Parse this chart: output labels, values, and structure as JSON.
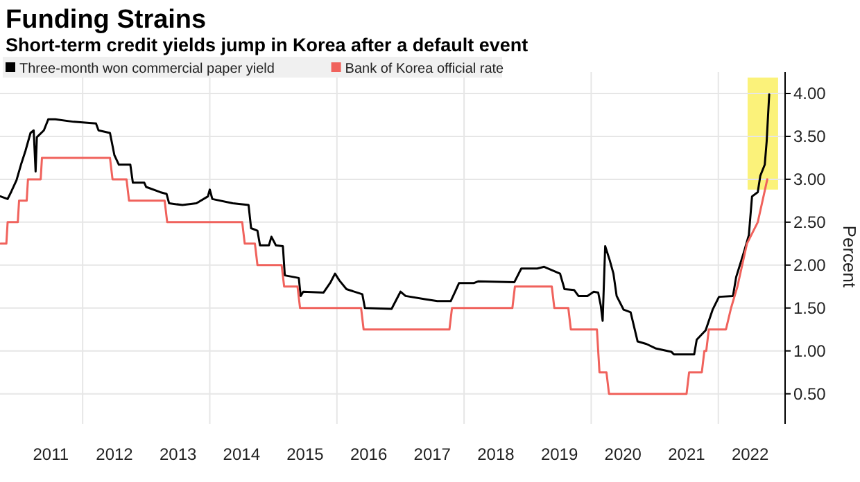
{
  "chart_data": {
    "type": "line",
    "title": "Funding Strains",
    "subtitle": "Short-term credit yields jump in Korea after a default event",
    "ylabel": "Percent",
    "series": [
      {
        "name": "Three-month won commercial paper yield",
        "color": "#000000",
        "x": [
          2010.71,
          2010.82,
          2010.88,
          2010.96,
          2011.03,
          2011.1,
          2011.18,
          2011.23,
          2011.26,
          2011.28,
          2011.39,
          2011.46,
          2011.57,
          2011.86,
          2012.21,
          2012.25,
          2012.43,
          2012.5,
          2012.57,
          2012.75,
          2012.79,
          2012.97,
          2013.0,
          2013.22,
          2013.32,
          2013.36,
          2013.57,
          2013.79,
          2013.97,
          2014.0,
          2014.04,
          2014.36,
          2014.61,
          2014.65,
          2014.75,
          2014.79,
          2014.93,
          2014.97,
          2015.04,
          2015.15,
          2015.18,
          2015.4,
          2015.43,
          2015.47,
          2015.79,
          2015.9,
          2015.97,
          2016.04,
          2016.15,
          2016.4,
          2016.44,
          2016.86,
          2017.0,
          2017.08,
          2017.4,
          2017.58,
          2017.79,
          2017.86,
          2017.92,
          2018.15,
          2018.22,
          2018.79,
          2018.9,
          2019.15,
          2019.26,
          2019.51,
          2019.58,
          2019.73,
          2019.8,
          2019.94,
          2020.04,
          2020.11,
          2020.15,
          2020.18,
          2020.22,
          2020.29,
          2020.35,
          2020.4,
          2020.51,
          2020.62,
          2020.73,
          2020.87,
          2021.01,
          2021.26,
          2021.3,
          2021.62,
          2021.66,
          2021.8,
          2021.91,
          2022.01,
          2022.23,
          2022.28,
          2022.41,
          2022.48,
          2022.53,
          2022.62,
          2022.66,
          2022.73,
          2022.76,
          2022.8
        ],
        "values": [
          2.8,
          2.77,
          2.86,
          2.99,
          3.17,
          3.33,
          3.54,
          3.57,
          3.09,
          3.49,
          3.57,
          3.7,
          3.7,
          3.67,
          3.65,
          3.57,
          3.54,
          3.28,
          3.17,
          3.17,
          2.96,
          2.96,
          2.91,
          2.85,
          2.83,
          2.72,
          2.7,
          2.72,
          2.8,
          2.88,
          2.77,
          2.72,
          2.7,
          2.43,
          2.4,
          2.23,
          2.23,
          2.33,
          2.23,
          2.22,
          1.88,
          1.85,
          1.64,
          1.69,
          1.68,
          1.8,
          1.9,
          1.82,
          1.72,
          1.66,
          1.5,
          1.49,
          1.69,
          1.64,
          1.6,
          1.58,
          1.58,
          1.69,
          1.79,
          1.79,
          1.81,
          1.8,
          1.96,
          1.96,
          1.98,
          1.9,
          1.72,
          1.71,
          1.64,
          1.64,
          1.69,
          1.68,
          1.53,
          1.35,
          2.22,
          2.06,
          1.9,
          1.64,
          1.48,
          1.45,
          1.11,
          1.08,
          1.03,
          0.99,
          0.96,
          0.96,
          1.13,
          1.24,
          1.48,
          1.63,
          1.64,
          1.86,
          2.17,
          2.35,
          2.8,
          2.85,
          3.04,
          3.17,
          3.44,
          3.99
        ]
      },
      {
        "name": "Bank of Korea official rate",
        "color": "#f0625c",
        "x": [
          2010.71,
          2010.8,
          2010.82,
          2010.98,
          2011.0,
          2011.12,
          2011.14,
          2011.34,
          2011.36,
          2012.43,
          2012.47,
          2012.69,
          2012.73,
          2013.29,
          2013.33,
          2014.51,
          2014.55,
          2014.71,
          2014.75,
          2015.13,
          2015.17,
          2015.38,
          2015.42,
          2016.38,
          2016.42,
          2017.77,
          2017.81,
          2018.76,
          2018.8,
          2019.38,
          2019.42,
          2019.64,
          2019.68,
          2020.09,
          2020.13,
          2020.24,
          2020.28,
          2021.5,
          2021.54,
          2021.74,
          2021.78,
          2021.81,
          2021.85,
          2021.96,
          2022.0,
          2022.12,
          2022.2,
          2022.3,
          2022.45,
          2022.62,
          2022.77
        ],
        "values": [
          2.25,
          2.25,
          2.5,
          2.5,
          2.75,
          2.75,
          3.0,
          3.0,
          3.25,
          3.25,
          3.0,
          3.0,
          2.75,
          2.75,
          2.5,
          2.5,
          2.25,
          2.25,
          2.0,
          2.0,
          1.75,
          1.75,
          1.5,
          1.5,
          1.25,
          1.25,
          1.5,
          1.5,
          1.75,
          1.75,
          1.5,
          1.5,
          1.25,
          1.25,
          0.75,
          0.75,
          0.5,
          0.5,
          0.75,
          0.75,
          1.0,
          1.0,
          1.25,
          1.25,
          1.25,
          1.25,
          1.5,
          1.75,
          2.25,
          2.5,
          3.0
        ]
      }
    ],
    "xlim": [
      2010.7,
      2023.05
    ],
    "ylim": [
      0.15,
      4.25
    ],
    "xticks": [
      {
        "value": 2011.5,
        "label": "2011"
      },
      {
        "value": 2012,
        "label": null
      },
      {
        "value": 2012.5,
        "label": "2012"
      },
      {
        "value": 2013.5,
        "label": "2013"
      },
      {
        "value": 2014,
        "label": null
      },
      {
        "value": 2014.5,
        "label": "2014"
      },
      {
        "value": 2015.5,
        "label": "2015"
      },
      {
        "value": 2016,
        "label": null
      },
      {
        "value": 2016.5,
        "label": "2016"
      },
      {
        "value": 2017.5,
        "label": "2017"
      },
      {
        "value": 2018,
        "label": null
      },
      {
        "value": 2018.5,
        "label": "2018"
      },
      {
        "value": 2019.5,
        "label": "2019"
      },
      {
        "value": 2020,
        "label": null
      },
      {
        "value": 2020.5,
        "label": "2020"
      },
      {
        "value": 2021.5,
        "label": "2021"
      },
      {
        "value": 2022,
        "label": null
      },
      {
        "value": 2022.5,
        "label": "2022"
      }
    ],
    "yticks": [
      {
        "value": 0.5,
        "label": "0.50"
      },
      {
        "value": 1,
        "label": "1.00"
      },
      {
        "value": 1.5,
        "label": "1.50"
      },
      {
        "value": 2,
        "label": "2.00"
      },
      {
        "value": 2.5,
        "label": "2.50"
      },
      {
        "value": 3,
        "label": "3.00"
      },
      {
        "value": 3.5,
        "label": "3.50"
      },
      {
        "value": 4,
        "label": "4.00"
      }
    ],
    "bands": [
      {
        "axis": "x",
        "from": 2022.46,
        "to": 2022.94,
        "color": "#fbf27a"
      }
    ],
    "grid": true,
    "legend": "top left"
  }
}
